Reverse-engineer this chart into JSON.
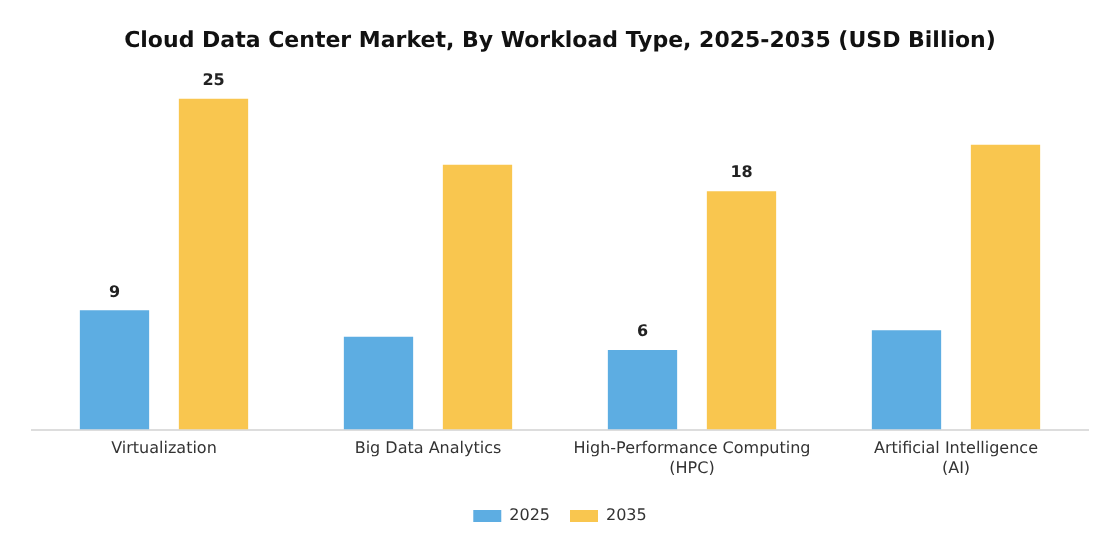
{
  "chart_data": {
    "type": "bar",
    "title": "Cloud Data Center Market, By Workload Type, 2025-2035 (USD Billion)",
    "categories": [
      "Virtualization",
      "Big Data Analytics",
      "High-Performance Computing (HPC)",
      "Artificial Intelligence (AI)"
    ],
    "series": [
      {
        "name": "2025",
        "color": "#5dade2",
        "values": [
          9,
          7,
          6,
          7.5
        ],
        "value_labels": [
          "9",
          null,
          "6",
          null
        ]
      },
      {
        "name": "2035",
        "color": "#f9c64f",
        "values": [
          25,
          20,
          18,
          21.5
        ],
        "value_labels": [
          "25",
          null,
          "18",
          null
        ]
      }
    ],
    "legend": "bottom",
    "grid": false
  }
}
